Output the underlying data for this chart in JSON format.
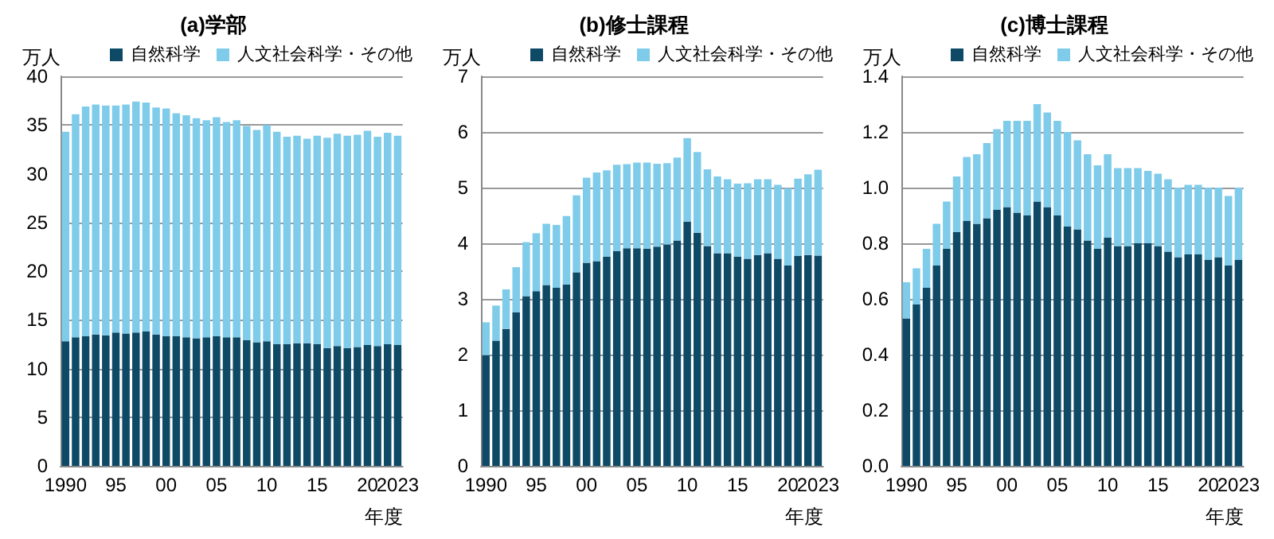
{
  "chart_data": [
    {
      "type": "bar",
      "title": "(a)学部",
      "ylabel": "万人",
      "xlabel": "年度",
      "stacked": true,
      "grid": "y",
      "legend": "top",
      "categories": [
        "1990",
        null,
        null,
        null,
        null,
        "95",
        null,
        null,
        null,
        null,
        "00",
        null,
        null,
        null,
        null,
        "05",
        null,
        null,
        null,
        null,
        "10",
        null,
        null,
        null,
        null,
        "15",
        null,
        null,
        null,
        null,
        "20",
        null,
        null,
        "2023"
      ],
      "ylim": [
        0,
        40
      ],
      "yticks": [
        0,
        5,
        10,
        15,
        20,
        25,
        30,
        35,
        40
      ],
      "series": [
        {
          "name": "自然科学",
          "color": "#0e4a66",
          "values": [
            12.8,
            13.2,
            13.3,
            13.5,
            13.4,
            13.7,
            13.6,
            13.7,
            13.8,
            13.5,
            13.3,
            13.3,
            13.2,
            13.1,
            13.2,
            13.3,
            13.2,
            13.2,
            12.9,
            12.7,
            12.8,
            12.5,
            12.5,
            12.6,
            12.6,
            12.5,
            12.1,
            12.3,
            12.1,
            12.2,
            12.4,
            12.3,
            12.5,
            12.4
          ]
        },
        {
          "name": "人文社会科学・その他",
          "color": "#7ecbea",
          "values": [
            21.5,
            22.9,
            23.6,
            23.6,
            23.6,
            23.3,
            23.5,
            23.7,
            23.5,
            23.3,
            23.4,
            22.9,
            22.8,
            22.6,
            22.3,
            22.5,
            22.1,
            22.3,
            22.0,
            21.8,
            22.2,
            21.8,
            21.3,
            21.3,
            21.0,
            21.4,
            21.6,
            21.8,
            21.8,
            21.8,
            22.0,
            21.5,
            21.7,
            21.5
          ]
        }
      ]
    },
    {
      "type": "bar",
      "title": "(b)修士課程",
      "ylabel": "万人",
      "xlabel": "年度",
      "stacked": true,
      "grid": "y",
      "legend": "top",
      "categories": [
        "1990",
        null,
        null,
        null,
        null,
        "95",
        null,
        null,
        null,
        null,
        "00",
        null,
        null,
        null,
        null,
        "05",
        null,
        null,
        null,
        null,
        "10",
        null,
        null,
        null,
        null,
        "15",
        null,
        null,
        null,
        null,
        "20",
        null,
        null,
        "2023"
      ],
      "ylim": [
        0,
        7
      ],
      "yticks": [
        0,
        1,
        2,
        3,
        4,
        5,
        6,
        7
      ],
      "series": [
        {
          "name": "自然科学",
          "color": "#0e4a66",
          "values": [
            1.99,
            2.25,
            2.46,
            2.76,
            3.05,
            3.14,
            3.25,
            3.2,
            3.26,
            3.48,
            3.65,
            3.68,
            3.76,
            3.86,
            3.91,
            3.91,
            3.9,
            3.94,
            3.98,
            4.05,
            4.39,
            4.19,
            3.95,
            3.82,
            3.82,
            3.76,
            3.72,
            3.79,
            3.82,
            3.72,
            3.6,
            3.77,
            3.79,
            3.78
          ]
        },
        {
          "name": "人文社会科学・その他",
          "color": "#7ecbea",
          "values": [
            0.59,
            0.63,
            0.71,
            0.81,
            0.97,
            1.04,
            1.1,
            1.13,
            1.23,
            1.38,
            1.53,
            1.59,
            1.55,
            1.55,
            1.51,
            1.54,
            1.55,
            1.49,
            1.46,
            1.49,
            1.5,
            1.45,
            1.38,
            1.38,
            1.33,
            1.31,
            1.36,
            1.36,
            1.33,
            1.33,
            1.39,
            1.39,
            1.45,
            1.54
          ]
        }
      ]
    },
    {
      "type": "bar",
      "title": "(c)博士課程",
      "ylabel": "万人",
      "xlabel": "年度",
      "stacked": true,
      "grid": "y",
      "legend": "top",
      "categories": [
        "1990",
        null,
        null,
        null,
        null,
        "95",
        null,
        null,
        null,
        null,
        "00",
        null,
        null,
        null,
        null,
        "05",
        null,
        null,
        null,
        null,
        "10",
        null,
        null,
        null,
        null,
        "15",
        null,
        null,
        null,
        null,
        "20",
        null,
        null,
        "2023"
      ],
      "ylim": [
        0,
        1.4
      ],
      "yticks": [
        {
          "value": 0,
          "label": "0.0"
        },
        {
          "value": 0.2,
          "label": "0.2"
        },
        {
          "value": 0.4,
          "label": "0.4"
        },
        {
          "value": 0.6,
          "label": "0.6"
        },
        {
          "value": 0.8,
          "label": "0.8"
        },
        {
          "value": 1,
          "label": "1.0"
        },
        {
          "value": 1.2,
          "label": "1.2"
        },
        {
          "value": 1.4,
          "label": "1.4"
        }
      ],
      "series": [
        {
          "name": "自然科学",
          "color": "#0e4a66",
          "values": [
            0.53,
            0.58,
            0.64,
            0.72,
            0.78,
            0.84,
            0.88,
            0.87,
            0.89,
            0.92,
            0.93,
            0.91,
            0.9,
            0.95,
            0.93,
            0.9,
            0.86,
            0.85,
            0.81,
            0.78,
            0.82,
            0.79,
            0.79,
            0.8,
            0.8,
            0.79,
            0.77,
            0.75,
            0.76,
            0.76,
            0.74,
            0.75,
            0.72,
            0.74
          ]
        },
        {
          "name": "人文社会科学・その他",
          "color": "#7ecbea",
          "values": [
            0.13,
            0.13,
            0.14,
            0.15,
            0.17,
            0.2,
            0.23,
            0.25,
            0.27,
            0.29,
            0.31,
            0.33,
            0.34,
            0.35,
            0.34,
            0.34,
            0.34,
            0.32,
            0.31,
            0.3,
            0.3,
            0.28,
            0.28,
            0.27,
            0.26,
            0.26,
            0.26,
            0.25,
            0.25,
            0.25,
            0.26,
            0.25,
            0.25,
            0.26
          ]
        }
      ]
    }
  ]
}
